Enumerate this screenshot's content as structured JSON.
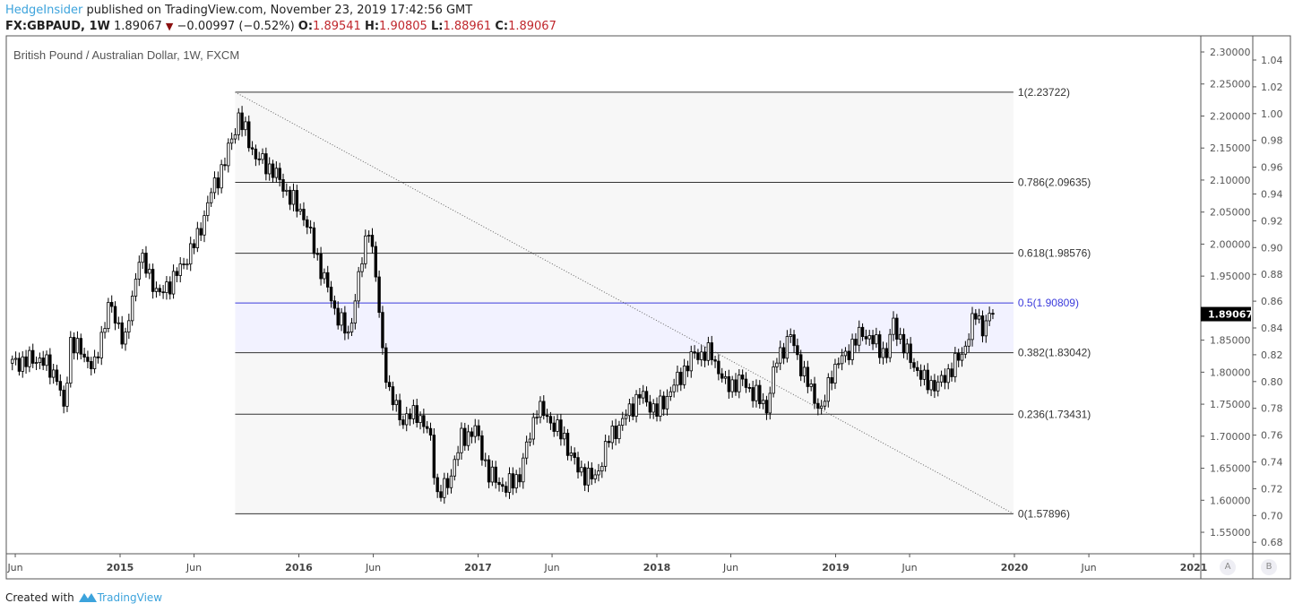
{
  "header": {
    "author": "HedgeInsider",
    "published": "published on TradingView.com, November 23, 2019 17:42:56 GMT",
    "symbol": "FX:GBPAUD, 1W",
    "last": "1.89067",
    "change": "−0.00997 (−0.52%)",
    "o_label": "O:",
    "o": "1.89541",
    "h_label": "H:",
    "h": "1.90805",
    "l_label": "L:",
    "l": "1.88961",
    "c_label": "C:",
    "c": "1.89067"
  },
  "footer": {
    "created": "Created with",
    "brand": "TradingView"
  },
  "buttons": {
    "a": "A",
    "b": "B"
  },
  "colors": {
    "down_arrow": "#8b1010",
    "ohlc_values": "#c0272d",
    "fib_mid": "#3b3bdc",
    "band": "#f2f2ff",
    "fib_bg": "#f7f7f7"
  },
  "chart_data": {
    "type": "candlestick",
    "title": "British Pound / Australian Dollar, 1W, FXCM",
    "ylim": [
      1.53,
      2.31
    ],
    "y_ticks": [
      "2.30000",
      "2.25000",
      "2.20000",
      "2.15000",
      "2.10000",
      "2.05000",
      "2.00000",
      "1.95000",
      "1.85000",
      "1.80000",
      "1.75000",
      "1.70000",
      "1.65000",
      "1.60000",
      "1.55000"
    ],
    "secondary_ticks": [
      "1.04",
      "1.02",
      "1.00",
      "0.98",
      "0.96",
      "0.94",
      "0.92",
      "0.90",
      "0.88",
      "0.86",
      "0.84",
      "0.82",
      "0.80",
      "0.78",
      "0.76",
      "0.74",
      "0.72",
      "0.70",
      "0.68"
    ],
    "x_ticks": [
      {
        "label": "Jun",
        "date": "2014-06-01"
      },
      {
        "label": "2015",
        "date": "2015-01-01",
        "bold": true
      },
      {
        "label": "Jun",
        "date": "2015-06-01"
      },
      {
        "label": "2016",
        "date": "2016-01-01",
        "bold": true
      },
      {
        "label": "Jun",
        "date": "2016-06-01"
      },
      {
        "label": "2017",
        "date": "2017-01-01",
        "bold": true
      },
      {
        "label": "Jun",
        "date": "2017-06-01"
      },
      {
        "label": "2018",
        "date": "2018-01-01",
        "bold": true
      },
      {
        "label": "Jun",
        "date": "2018-06-01"
      },
      {
        "label": "2019",
        "date": "2019-01-01",
        "bold": true
      },
      {
        "label": "Jun",
        "date": "2019-06-01"
      },
      {
        "label": "2020",
        "date": "2020-01-01",
        "bold": true
      },
      {
        "label": "Jun",
        "date": "2020-06-01"
      },
      {
        "label": "2021",
        "date": "2021-01-01",
        "bold": true
      }
    ],
    "last_price_label": "1.89067",
    "closes": [
      [
        "2014-05-26",
        1.814
      ],
      [
        "2014-07-21",
        1.821
      ],
      [
        "2014-08-25",
        1.794
      ],
      [
        "2014-09-08",
        1.738
      ],
      [
        "2014-09-22",
        1.849
      ],
      [
        "2014-11-10",
        1.807
      ],
      [
        "2014-12-08",
        1.905
      ],
      [
        "2015-01-12",
        1.849
      ],
      [
        "2015-02-09",
        1.982
      ],
      [
        "2015-03-23",
        1.919
      ],
      [
        "2015-05-04",
        1.961
      ],
      [
        "2015-06-08",
        2.01
      ],
      [
        "2015-07-06",
        2.08
      ],
      [
        "2015-08-03",
        2.129
      ],
      [
        "2015-08-31",
        2.199
      ],
      [
        "2015-10-05",
        2.136
      ],
      [
        "2015-11-09",
        2.115
      ],
      [
        "2015-12-14",
        2.073
      ],
      [
        "2016-01-11",
        2.045
      ],
      [
        "2016-02-15",
        1.961
      ],
      [
        "2016-03-14",
        1.898
      ],
      [
        "2016-04-11",
        1.856
      ],
      [
        "2016-05-09",
        1.975
      ],
      [
        "2016-05-23",
        2.031
      ],
      [
        "2016-06-06",
        1.947
      ],
      [
        "2016-06-20",
        1.835
      ],
      [
        "2016-07-04",
        1.765
      ],
      [
        "2016-08-01",
        1.724
      ],
      [
        "2016-08-29",
        1.738
      ],
      [
        "2016-09-26",
        1.696
      ],
      [
        "2016-10-10",
        1.605
      ],
      [
        "2016-10-31",
        1.626
      ],
      [
        "2016-11-28",
        1.696
      ],
      [
        "2016-12-26",
        1.71
      ],
      [
        "2017-01-23",
        1.64
      ],
      [
        "2017-02-27",
        1.619
      ],
      [
        "2017-03-27",
        1.64
      ],
      [
        "2017-05-01",
        1.745
      ],
      [
        "2017-05-29",
        1.724
      ],
      [
        "2017-06-26",
        1.696
      ],
      [
        "2017-07-24",
        1.647
      ],
      [
        "2017-08-28",
        1.633
      ],
      [
        "2017-09-25",
        1.696
      ],
      [
        "2017-10-23",
        1.724
      ],
      [
        "2017-11-27",
        1.765
      ],
      [
        "2018-01-01",
        1.738
      ],
      [
        "2018-02-05",
        1.779
      ],
      [
        "2018-03-19",
        1.828
      ],
      [
        "2018-04-23",
        1.828
      ],
      [
        "2018-05-21",
        1.779
      ],
      [
        "2018-06-25",
        1.786
      ],
      [
        "2018-08-13",
        1.745
      ],
      [
        "2018-09-03",
        1.821
      ],
      [
        "2018-10-01",
        1.856
      ],
      [
        "2018-10-29",
        1.794
      ],
      [
        "2018-12-03",
        1.738
      ],
      [
        "2018-12-24",
        1.8
      ],
      [
        "2019-01-28",
        1.835
      ],
      [
        "2019-02-25",
        1.863
      ],
      [
        "2019-04-15",
        1.828
      ],
      [
        "2019-04-29",
        1.877
      ],
      [
        "2019-05-27",
        1.828
      ],
      [
        "2019-07-01",
        1.786
      ],
      [
        "2019-07-29",
        1.779
      ],
      [
        "2019-08-26",
        1.807
      ],
      [
        "2019-09-16",
        1.828
      ],
      [
        "2019-10-14",
        1.891
      ],
      [
        "2019-10-28",
        1.87
      ],
      [
        "2019-11-18",
        1.89067
      ]
    ],
    "fibonacci": {
      "start_date": "2015-08-24",
      "end_date": "2019-12-30",
      "levels": [
        {
          "ratio": 1,
          "price": 2.23722,
          "label": "1(2.23722)"
        },
        {
          "ratio": 0.786,
          "price": 2.09635,
          "label": "0.786(2.09635)"
        },
        {
          "ratio": 0.618,
          "price": 1.98576,
          "label": "0.618(1.98576)"
        },
        {
          "ratio": 0.5,
          "price": 1.90809,
          "label": "0.5(1.90809)",
          "highlight": true
        },
        {
          "ratio": 0.382,
          "price": 1.83042,
          "label": "0.382(1.83042)"
        },
        {
          "ratio": 0.236,
          "price": 1.73431,
          "label": "0.236(1.73431)"
        },
        {
          "ratio": 0,
          "price": 1.57896,
          "label": "0(1.57896)"
        }
      ]
    },
    "trendline": {
      "from": [
        "2015-08-24",
        2.23722
      ],
      "to": [
        "2019-12-30",
        1.57896
      ]
    }
  }
}
